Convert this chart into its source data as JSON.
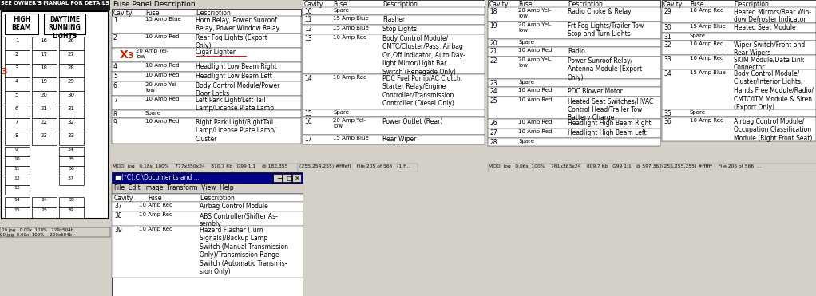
{
  "bg_color": "#d4d0c8",
  "title": "SEE OWNER'S MANUAL FOR DETAILS",
  "panel1_title": "Fuse Panel Description",
  "panel1_rows": [
    [
      "1",
      "15 Amp Blue",
      "Horn Relay, Power Sunroof\nRelay, Power Window Relay"
    ],
    [
      "2",
      "10 Amp Red",
      "Rear Fog Lights (Export\nOnly)"
    ],
    [
      "3",
      "20 Amp Yel-\nlow",
      "Cigar Lighter"
    ],
    [
      "4",
      "10 Amp Red",
      "Headlight Low Beam Right"
    ],
    [
      "5",
      "10 Amp Red",
      "Headlight Low Beam Left"
    ],
    [
      "6",
      "20 Amp Yel-\nlow",
      "Body Control Module/Power\nDoor Locks"
    ],
    [
      "7",
      "10 Amp Red",
      "Left Park Light/Left Tail\nLamp/License Plate Lamp"
    ],
    [
      "8",
      "Spare",
      ""
    ],
    [
      "9",
      "10 Amp Red",
      "Right Park Light/RightTail\nLamp/License Plate Lamp/\nCluster"
    ]
  ],
  "panel2_rows": [
    [
      "10",
      "Spare",
      ""
    ],
    [
      "11",
      "15 Amp Blue",
      "Flasher"
    ],
    [
      "12",
      "15 Amp Blue",
      "Stop Lights"
    ],
    [
      "13",
      "10 Amp Red",
      "Body Control Module/\nCMTC/Cluster/Pass. Airbag\nOn,Off Indicator, Auto Day-\nlight Mirror/Light Bar\nSwitch (Renegade Only)"
    ],
    [
      "14",
      "10 Amp Red",
      "PDC Fuel Pump/AC Clutch,\nStarter Relay/Engine\nController/Transmission\nController (Diesel Only)"
    ],
    [
      "15",
      "Spare",
      ""
    ],
    [
      "16",
      "20 Amp Yel-\nlow",
      "Power Outlet (Rear)"
    ],
    [
      "17",
      "15 Amp Blue",
      "Rear Wiper"
    ]
  ],
  "panel3_rows": [
    [
      "18",
      "20 Amp Yel-\nlow",
      "Radio Choke & Relay"
    ],
    [
      "19",
      "20 Amp Yel-\nlow",
      "Frt Fog Lights/Trailer Tow\nStop and Turn Lights"
    ],
    [
      "20",
      "Spare",
      ""
    ],
    [
      "21",
      "10 Amp Red",
      "Radio"
    ],
    [
      "22",
      "20 Amp Yel-\nlow",
      "Power Sunroof Relay/\nAntenna Module (Export\nOnly)"
    ],
    [
      "23",
      "Spare",
      ""
    ],
    [
      "24",
      "10 Amp Red",
      "PDC Blower Motor"
    ],
    [
      "25",
      "10 Amp Red",
      "Heated Seat Switches/HVAC\nControl Head/Trailer Tow\nBattery Charge"
    ],
    [
      "26",
      "10 Amp Red",
      "Headlight High Beam Right"
    ],
    [
      "27",
      "10 Amp Red",
      "Headlight High Beam Left"
    ],
    [
      "28",
      "Spare",
      ""
    ]
  ],
  "panel4_rows": [
    [
      "29",
      "10 Amp Red",
      "Heated Mirrors/Rear Win-\ndow Defroster Indicator"
    ],
    [
      "30",
      "15 Amp Blue",
      "Heated Seat Module"
    ],
    [
      "31",
      "Spare",
      ""
    ],
    [
      "32",
      "10 Amp Red",
      "Wiper Switch/Front and\nRear Wipers"
    ],
    [
      "33",
      "10 Amp Red",
      "SKIM Module/Data Link\nConnector"
    ],
    [
      "34",
      "15 Amp Blue",
      "Body Control Module/\nCluster/Interior Lights,\nHands Free Module/Radio/\nCMTC/ITM Module & Siren\n(Export Only)"
    ],
    [
      "35",
      "Spare",
      ""
    ],
    [
      "36",
      "10 Amp Red",
      "Airbag Control Module/\nOccupation Classification\nModule (Right Front Seat)"
    ]
  ],
  "bottom_panel_title": "(*C):C:\\Documents and ...",
  "bottom_menu": "File  Edit  Image  Transform  View  Help",
  "bottom_rows": [
    [
      "37",
      "10 Amp Red",
      "Airbag Control Module"
    ],
    [
      "38",
      "10 Amp Red",
      "ABS Controller/Shifter As-\nsembly"
    ],
    [
      "39",
      "10 Amp Red",
      "Hazard Flasher (Turn\nSignals)/Backup Lamp\nSwitch (Manual Transmission\nOnly)/Transmission Range\nSwitch (Automatic Transmis-\nsion Only)"
    ]
  ],
  "statusbar1": "MOD  jpg   0.18s  100%    777x350x24    810.7 Kb   G99 1:1    @ 182,355",
  "statusbar1r": "(255,254,255) #fffefl    File 205 of 566   (1 F...",
  "statusbar2": "MOD  jpg   0.06s  100%    761x363x24    809.7 Kb   G99 1:1   @ 597,362",
  "statusbar2r": "(255,255,255) #ffffff    File 206 of 566  ..."
}
